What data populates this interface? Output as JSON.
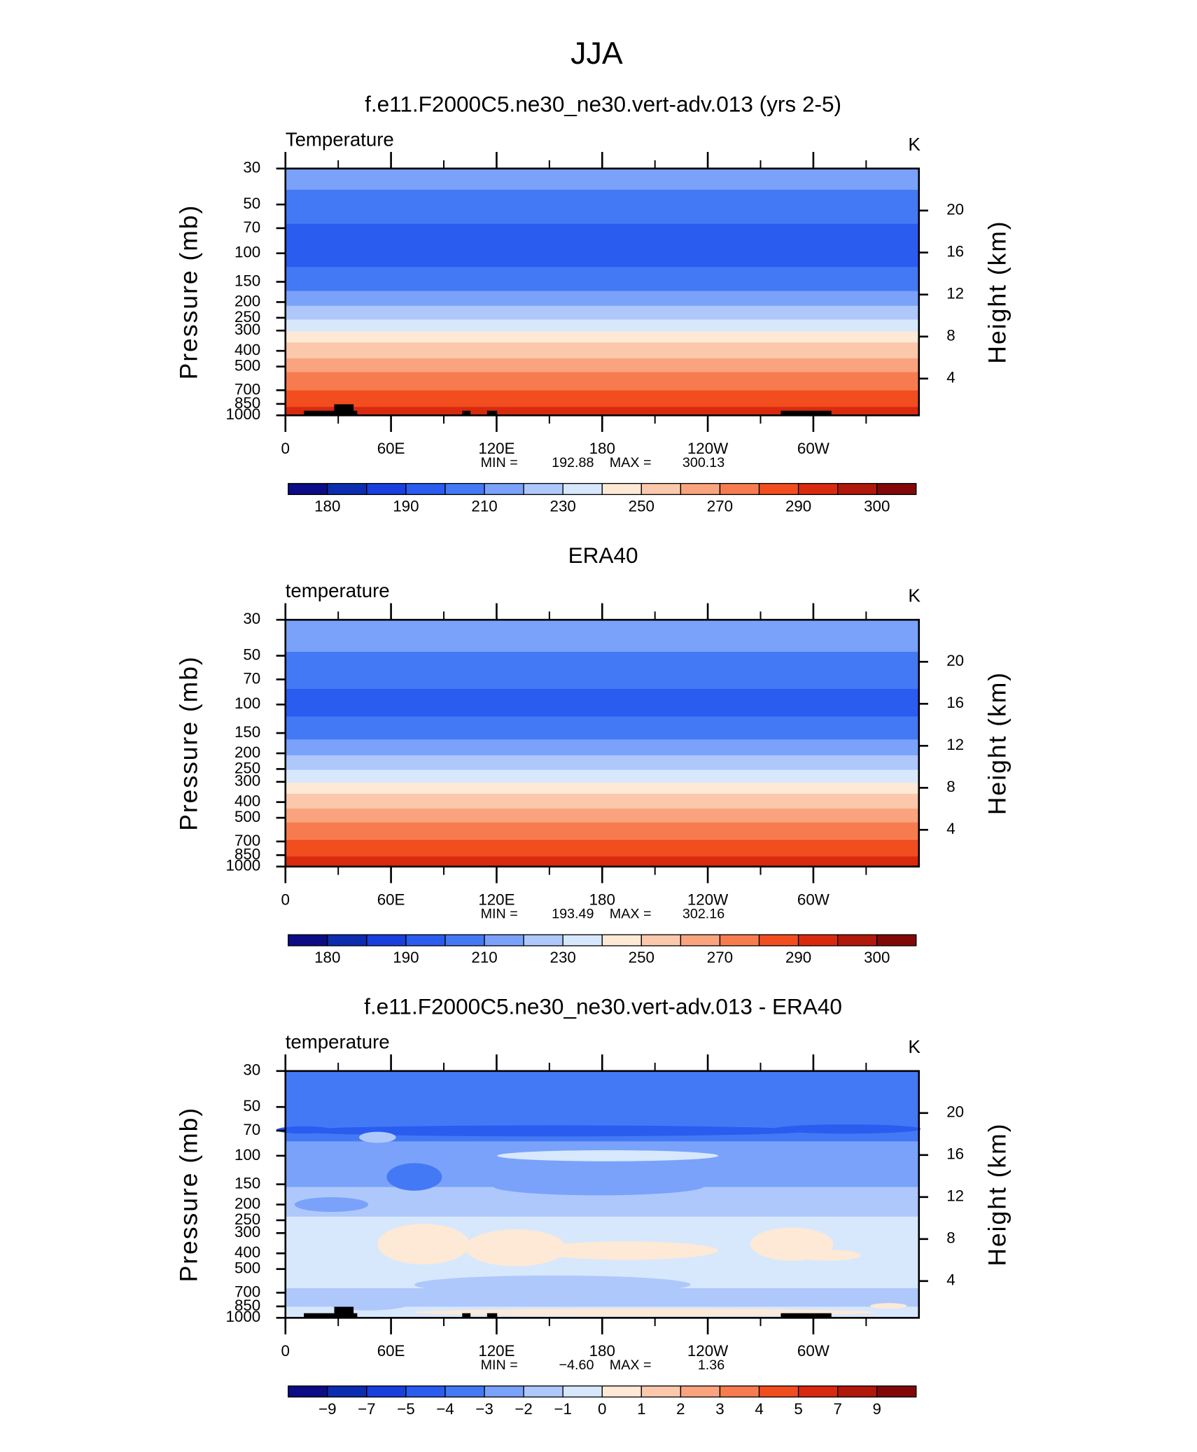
{
  "title": "JJA",
  "chart_data": [
    {
      "type": "contour",
      "title": "f.e11.F2000C5.ne30_ne30.vert-adv.013 (yrs 2-5)",
      "variable": "Temperature",
      "units": "K",
      "ylabel": "Pressure (mb)",
      "y2label": "Height (km)",
      "ylim": [
        1000,
        30
      ],
      "log_y": true,
      "yticks": [
        30,
        50,
        70,
        100,
        150,
        200,
        250,
        300,
        400,
        500,
        700,
        850,
        1000
      ],
      "y2lim": [
        0.5,
        24
      ],
      "y2ticks": [
        4,
        8,
        12,
        16,
        20
      ],
      "xlim": [
        0,
        360
      ],
      "xticks": [
        0,
        {
          "value": 60,
          "label": "60E"
        },
        {
          "value": 120,
          "label": "120E"
        },
        180,
        {
          "value": 240,
          "label": "120W"
        },
        {
          "value": 300,
          "label": "60W"
        }
      ],
      "xticks_minor": [
        30,
        90,
        150,
        210,
        270,
        330
      ],
      "stats": {
        "min_label": "MIN =",
        "min": 192.88,
        "max_label": "MAX =",
        "max": 300.13
      },
      "colorbar": {
        "colors": [
          "#0b0c86",
          "#0c2db0",
          "#1a3fdf",
          "#2a5cf0",
          "#4479f5",
          "#7aa2fa",
          "#aec8fb",
          "#d7e8fd",
          "#fde9d6",
          "#fcc8ac",
          "#f9a47e",
          "#f67c50",
          "#f24d1f",
          "#d92a10",
          "#b0180b",
          "#820808"
        ],
        "labels": [
          180,
          190,
          210,
          230,
          250,
          270,
          290,
          300
        ]
      }
    },
    {
      "type": "contour",
      "title": "ERA40",
      "variable": "temperature",
      "units": "K",
      "ylabel": "Pressure (mb)",
      "y2label": "Height (km)",
      "ylim": [
        1000,
        30
      ],
      "log_y": true,
      "yticks": [
        30,
        50,
        70,
        100,
        150,
        200,
        250,
        300,
        400,
        500,
        700,
        850,
        1000
      ],
      "y2lim": [
        0.5,
        24
      ],
      "y2ticks": [
        4,
        8,
        12,
        16,
        20
      ],
      "xlim": [
        0,
        360
      ],
      "xticks": [
        0,
        {
          "value": 60,
          "label": "60E"
        },
        {
          "value": 120,
          "label": "120E"
        },
        180,
        {
          "value": 240,
          "label": "120W"
        },
        {
          "value": 300,
          "label": "60W"
        }
      ],
      "xticks_minor": [
        30,
        90,
        150,
        210,
        270,
        330
      ],
      "stats": {
        "min_label": "MIN =",
        "min": 193.49,
        "max_label": "MAX =",
        "max": 302.16
      },
      "colorbar": {
        "colors": [
          "#0b0c86",
          "#0c2db0",
          "#1a3fdf",
          "#2a5cf0",
          "#4479f5",
          "#7aa2fa",
          "#aec8fb",
          "#d7e8fd",
          "#fde9d6",
          "#fcc8ac",
          "#f9a47e",
          "#f67c50",
          "#f24d1f",
          "#d92a10",
          "#b0180b",
          "#820808"
        ],
        "labels": [
          180,
          190,
          210,
          230,
          250,
          270,
          290,
          300
        ]
      }
    },
    {
      "type": "contour",
      "title": "f.e11.F2000C5.ne30_ne30.vert-adv.013 - ERA40",
      "variable": "temperature",
      "units": "K",
      "ylabel": "Pressure (mb)",
      "y2label": "Height (km)",
      "ylim": [
        1000,
        30
      ],
      "log_y": true,
      "yticks": [
        30,
        50,
        70,
        100,
        150,
        200,
        250,
        300,
        400,
        500,
        700,
        850,
        1000
      ],
      "y2lim": [
        0.5,
        24
      ],
      "y2ticks": [
        4,
        8,
        12,
        16,
        20
      ],
      "xlim": [
        0,
        360
      ],
      "xticks": [
        0,
        {
          "value": 60,
          "label": "60E"
        },
        {
          "value": 120,
          "label": "120E"
        },
        180,
        {
          "value": 240,
          "label": "120W"
        },
        {
          "value": 300,
          "label": "60W"
        }
      ],
      "xticks_minor": [
        30,
        90,
        150,
        210,
        270,
        330
      ],
      "stats": {
        "min_label": "MIN =",
        "min": {
          "value": -4.6,
          "label": "−4.60"
        },
        "max_label": "MAX =",
        "max": 1.36
      },
      "colorbar": {
        "colors": [
          "#0b0c86",
          "#0c2db0",
          "#1a3fdf",
          "#2a5cf0",
          "#4479f5",
          "#7aa2fa",
          "#aec8fb",
          "#d7e8fd",
          "#fde9d6",
          "#fcc8ac",
          "#f9a47e",
          "#f67c50",
          "#f24d1f",
          "#d92a10",
          "#b0180b",
          "#820808"
        ],
        "labels": [
          {
            "value": -9,
            "label": "−9"
          },
          {
            "value": -7,
            "label": "−7"
          },
          {
            "value": -5,
            "label": "−5"
          },
          {
            "value": -4,
            "label": "−4"
          },
          {
            "value": -3,
            "label": "−3"
          },
          {
            "value": -2,
            "label": "−2"
          },
          {
            "value": -1,
            "label": "−1"
          },
          0,
          1,
          2,
          3,
          4,
          5,
          7,
          9
        ]
      }
    }
  ]
}
